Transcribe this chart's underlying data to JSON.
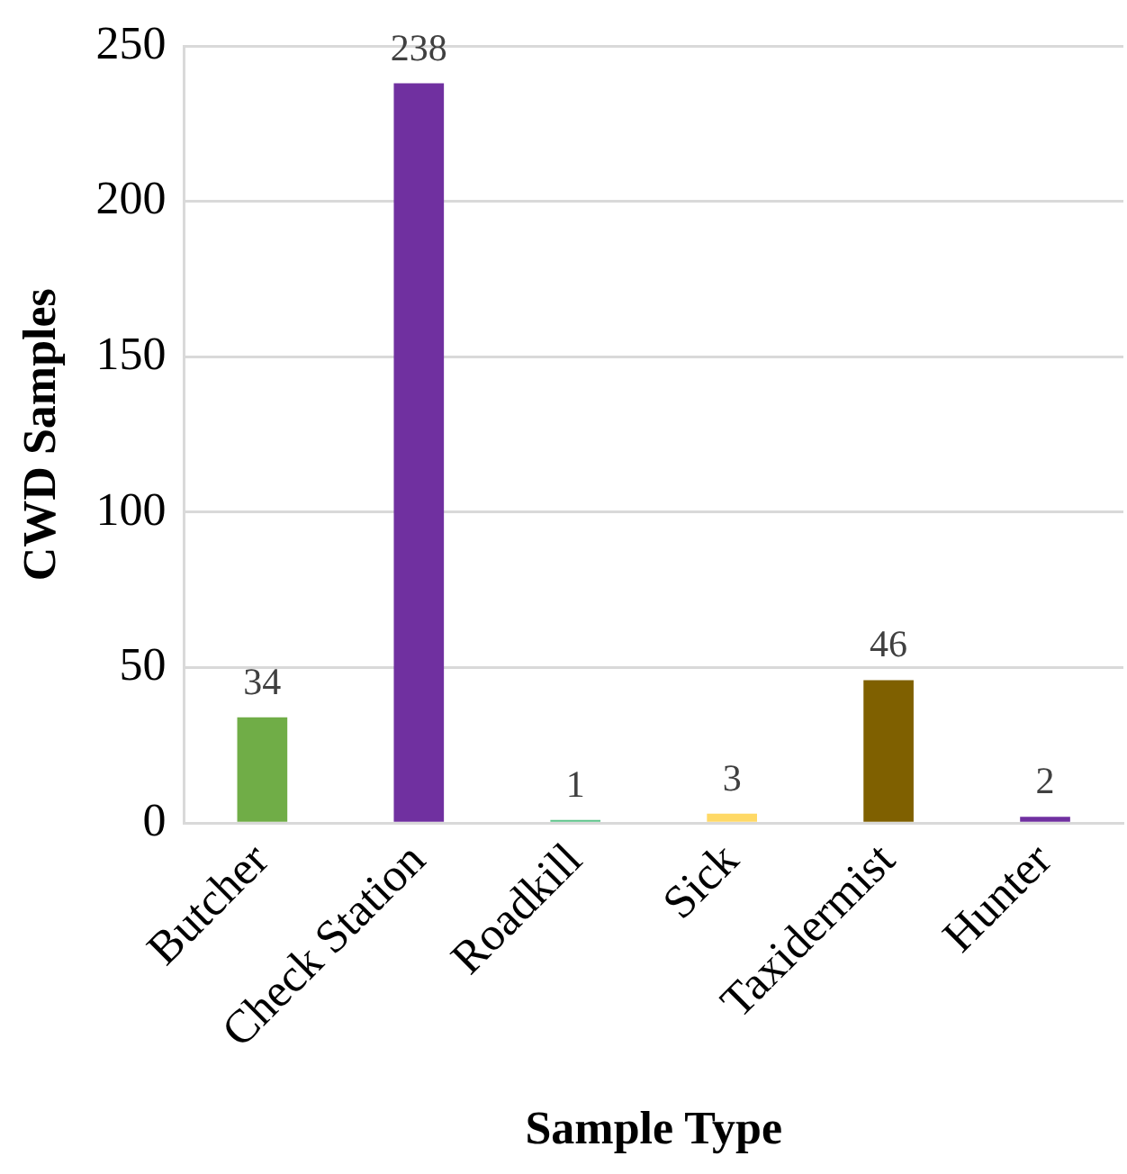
{
  "chart_data": {
    "type": "bar",
    "xlabel": "Sample Type",
    "ylabel": "CWD Samples",
    "categories": [
      "Butcher",
      "Check Station",
      "Roadkill",
      "Sick",
      "Taxidermist",
      "Hunter"
    ],
    "values": [
      34,
      238,
      1,
      3,
      46,
      2
    ],
    "colors": [
      "#70ad47",
      "#7030a0",
      "#5cc389",
      "#ffd966",
      "#7f6000",
      "#7030a0"
    ],
    "ylim": [
      0,
      250
    ],
    "yticks": [
      0,
      50,
      100,
      150,
      200,
      250
    ],
    "grid": "y",
    "data_labels": true
  }
}
